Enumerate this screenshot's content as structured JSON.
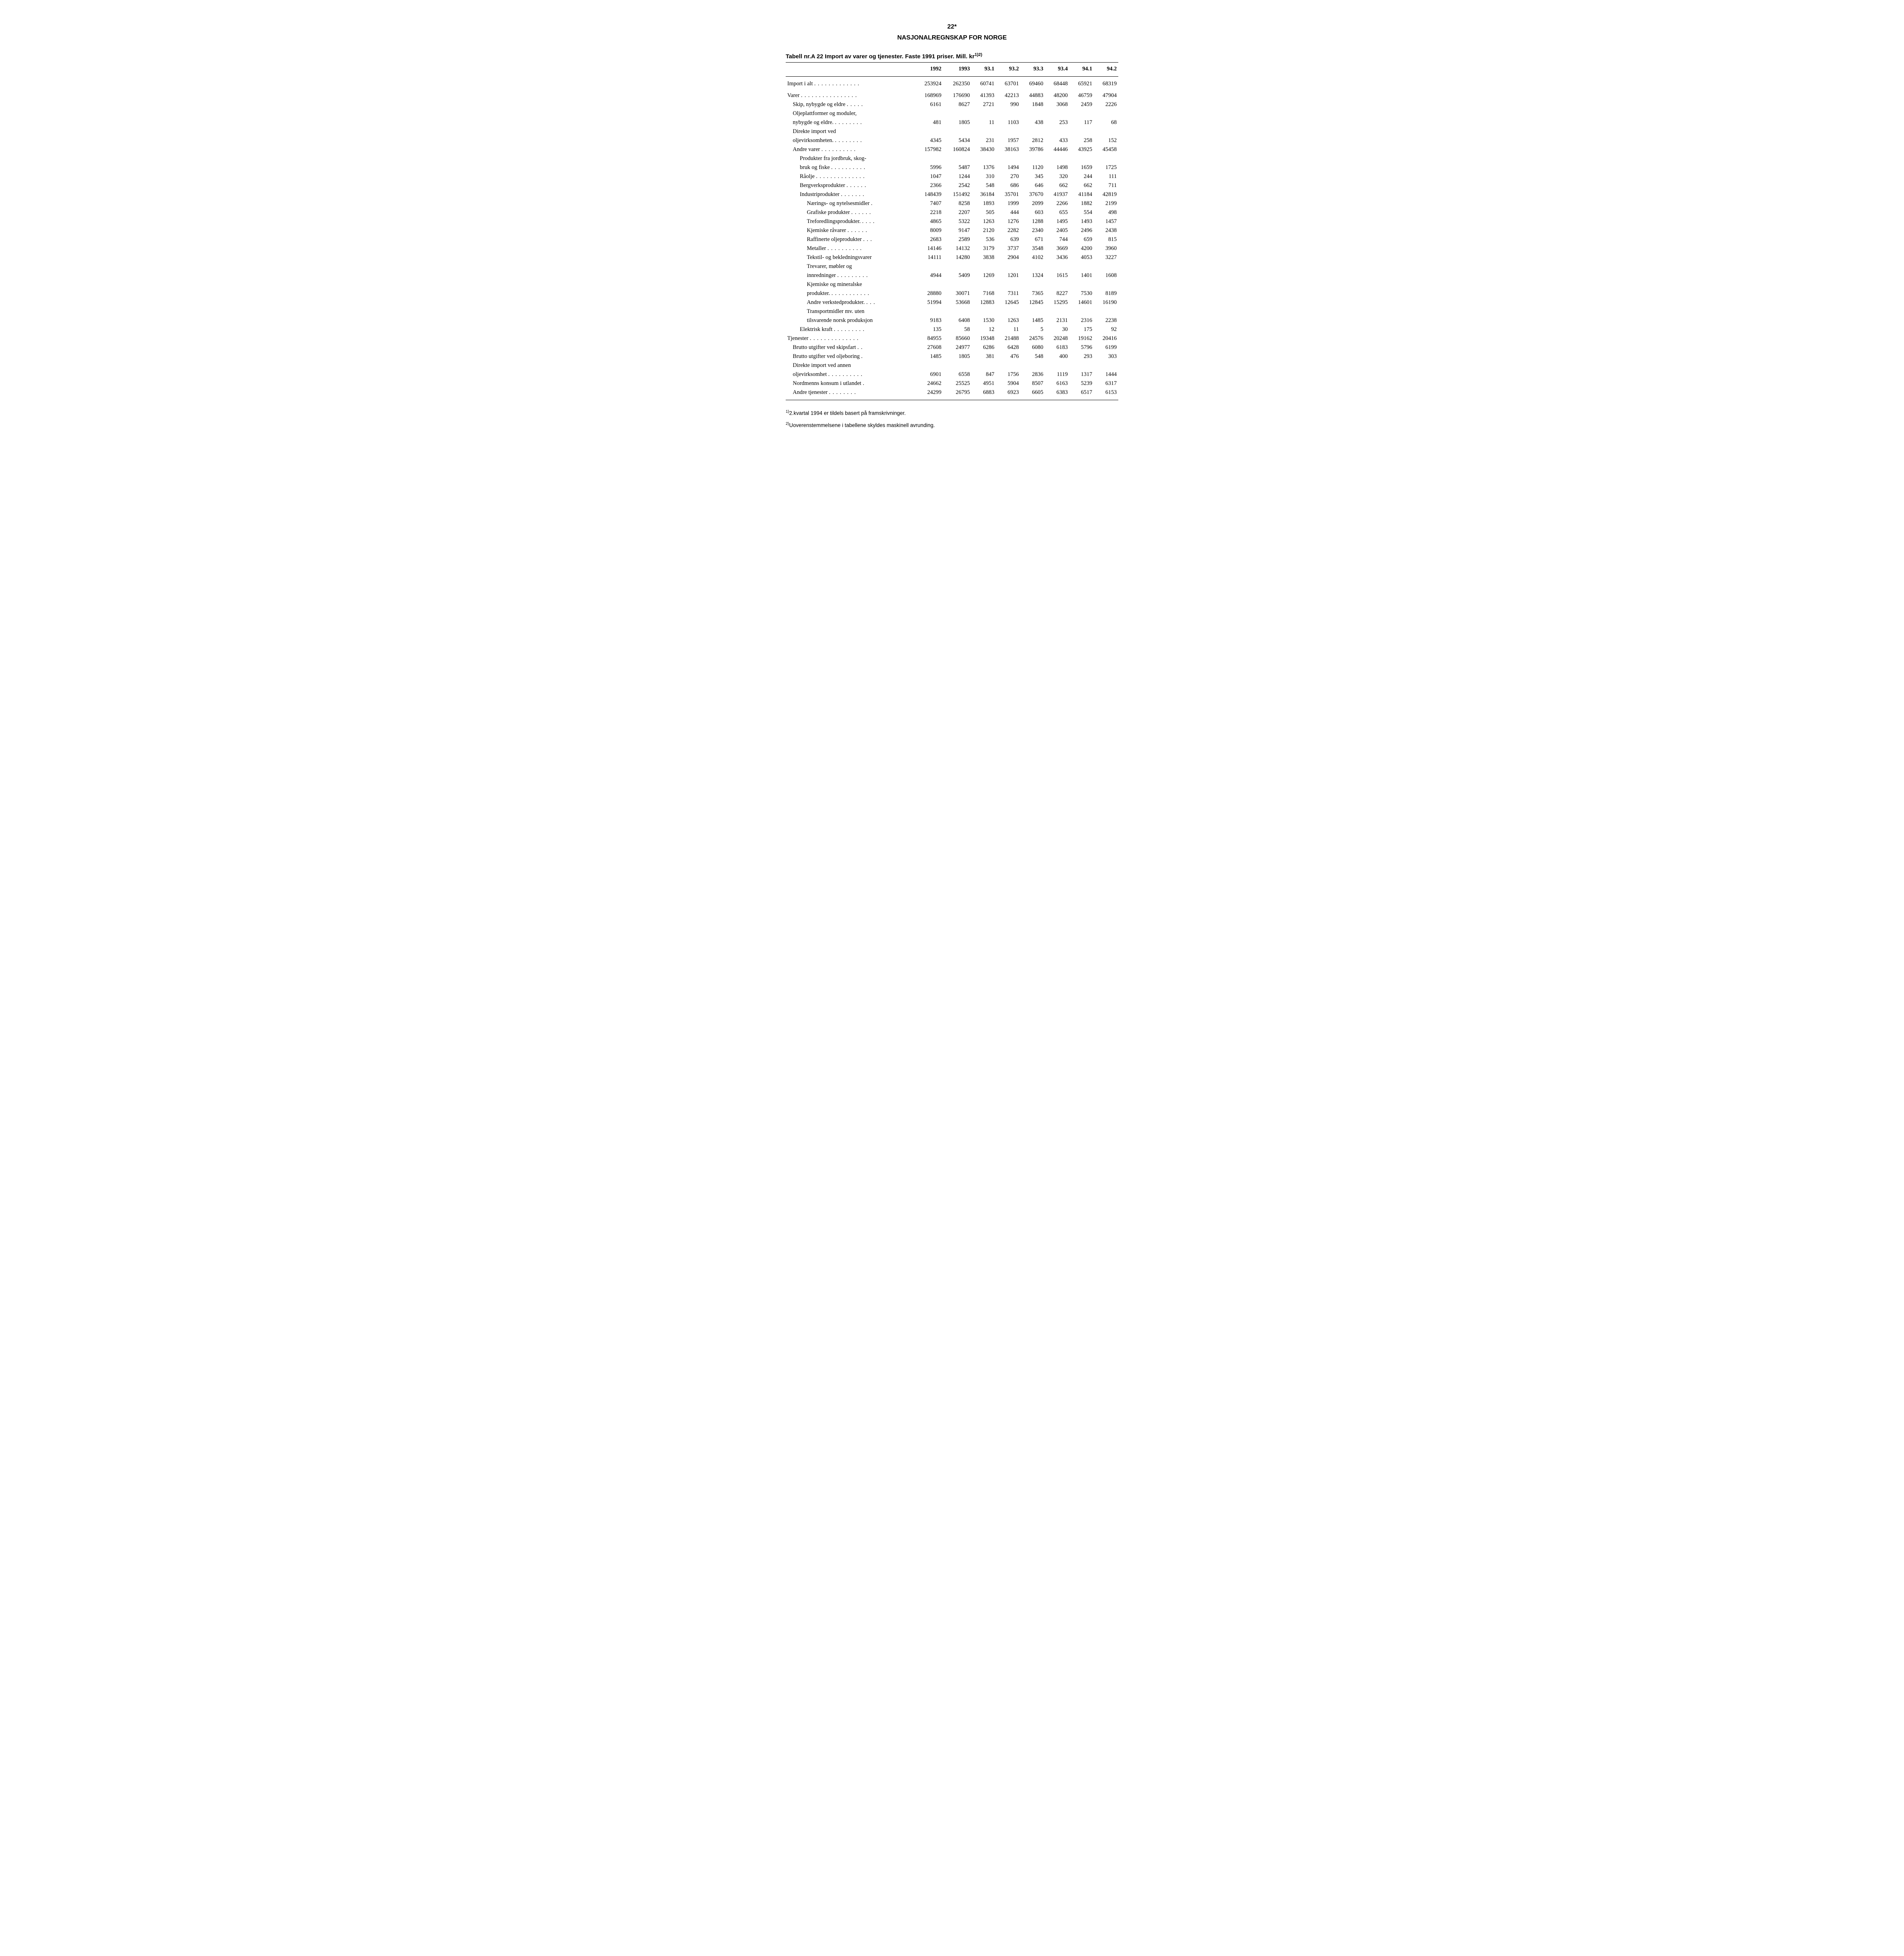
{
  "page_number": "22*",
  "doc_title": "NASJONALREGNSKAP FOR NORGE",
  "table_title_prefix": "Tabell nr.A 22 Import av varer og tjenester. Faste 1991 priser. Mill. kr",
  "table_title_sup": "1)2)",
  "columns": [
    "",
    "1992",
    "1993",
    "93.1",
    "93.2",
    "93.3",
    "93.4",
    "94.1",
    "94.2"
  ],
  "rows": [
    {
      "label": "Import i alt",
      "dots": 13,
      "indent": 0,
      "values": [
        "253924",
        "262350",
        "60741",
        "63701",
        "69460",
        "68448",
        "65921",
        "68319"
      ],
      "spacer": true
    },
    {
      "label": "Varer",
      "dots": 16,
      "indent": 0,
      "values": [
        "168969",
        "176690",
        "41393",
        "42213",
        "44883",
        "48200",
        "46759",
        "47904"
      ],
      "spacer": true
    },
    {
      "label": "Skip, nybygde og eldre",
      "dots": 5,
      "indent": 1,
      "values": [
        "6161",
        "8627",
        "2721",
        "990",
        "1848",
        "3068",
        "2459",
        "2226"
      ]
    },
    {
      "label": "Oljeplattformer og moduler,",
      "dots": 0,
      "indent": 1,
      "values": [
        "",
        "",
        "",
        "",
        "",
        "",
        "",
        ""
      ]
    },
    {
      "label": "nybygde og eldre.",
      "dots": 8,
      "indent": 1,
      "values": [
        "481",
        "1805",
        "11",
        "1103",
        "438",
        "253",
        "117",
        "68"
      ]
    },
    {
      "label": "Direkte import ved",
      "dots": 0,
      "indent": 1,
      "values": [
        "",
        "",
        "",
        "",
        "",
        "",
        "",
        ""
      ]
    },
    {
      "label": "oljevirksomheten.",
      "dots": 8,
      "indent": 1,
      "values": [
        "4345",
        "5434",
        "231",
        "1957",
        "2812",
        "433",
        "258",
        "152"
      ]
    },
    {
      "label": "Andre varer",
      "dots": 10,
      "indent": 1,
      "values": [
        "157982",
        "160824",
        "38430",
        "38163",
        "39786",
        "44446",
        "43925",
        "45458"
      ]
    },
    {
      "label": "Produkter fra jordbruk, skog-",
      "dots": 0,
      "indent": 2,
      "values": [
        "",
        "",
        "",
        "",
        "",
        "",
        "",
        ""
      ]
    },
    {
      "label": "bruk og fiske",
      "dots": 10,
      "indent": 2,
      "values": [
        "5996",
        "5487",
        "1376",
        "1494",
        "1120",
        "1498",
        "1659",
        "1725"
      ]
    },
    {
      "label": "Råolje",
      "dots": 14,
      "indent": 2,
      "values": [
        "1047",
        "1244",
        "310",
        "270",
        "345",
        "320",
        "244",
        "111"
      ]
    },
    {
      "label": "Bergverksprodukter",
      "dots": 6,
      "indent": 2,
      "values": [
        "2366",
        "2542",
        "548",
        "686",
        "646",
        "662",
        "662",
        "711"
      ]
    },
    {
      "label": "Industriprodukter",
      "dots": 7,
      "indent": 2,
      "values": [
        "148439",
        "151492",
        "36184",
        "35701",
        "37670",
        "41937",
        "41184",
        "42819"
      ]
    },
    {
      "label": "Nærings- og nytelsesmidler .",
      "dots": 0,
      "indent": 3,
      "values": [
        "7407",
        "8258",
        "1893",
        "1999",
        "2099",
        "2266",
        "1882",
        "2199"
      ]
    },
    {
      "label": "Grafiske produkter",
      "dots": 6,
      "indent": 3,
      "values": [
        "2218",
        "2207",
        "505",
        "444",
        "603",
        "655",
        "554",
        "498"
      ]
    },
    {
      "label": "Treforedlingsprodukter.",
      "dots": 4,
      "indent": 3,
      "values": [
        "4865",
        "5322",
        "1263",
        "1276",
        "1288",
        "1495",
        "1493",
        "1457"
      ]
    },
    {
      "label": "Kjemiske råvarer",
      "dots": 6,
      "indent": 3,
      "values": [
        "8009",
        "9147",
        "2120",
        "2282",
        "2340",
        "2405",
        "2496",
        "2438"
      ]
    },
    {
      "label": "Raffinerte oljeprodukter",
      "dots": 3,
      "indent": 3,
      "values": [
        "2683",
        "2589",
        "536",
        "639",
        "671",
        "744",
        "659",
        "815"
      ]
    },
    {
      "label": "Metaller",
      "dots": 10,
      "indent": 3,
      "values": [
        "14146",
        "14132",
        "3179",
        "3737",
        "3548",
        "3669",
        "4200",
        "3960"
      ]
    },
    {
      "label": "Tekstil- og bekledningsvarer",
      "dots": 0,
      "indent": 3,
      "values": [
        "14111",
        "14280",
        "3838",
        "2904",
        "4102",
        "3436",
        "4053",
        "3227"
      ]
    },
    {
      "label": "Trevarer, møbler og",
      "dots": 0,
      "indent": 3,
      "values": [
        "",
        "",
        "",
        "",
        "",
        "",
        "",
        ""
      ]
    },
    {
      "label": "innredninger",
      "dots": 9,
      "indent": 3,
      "values": [
        "4944",
        "5409",
        "1269",
        "1201",
        "1324",
        "1615",
        "1401",
        "1608"
      ]
    },
    {
      "label": "Kjemiske og mineralske",
      "dots": 0,
      "indent": 3,
      "values": [
        "",
        "",
        "",
        "",
        "",
        "",
        "",
        ""
      ]
    },
    {
      "label": "produkter.",
      "dots": 11,
      "indent": 3,
      "values": [
        "28880",
        "30071",
        "7168",
        "7311",
        "7365",
        "8227",
        "7530",
        "8189"
      ]
    },
    {
      "label": "Andre verkstedprodukter.",
      "dots": 3,
      "indent": 3,
      "values": [
        "51994",
        "53668",
        "12883",
        "12645",
        "12845",
        "15295",
        "14601",
        "16190"
      ]
    },
    {
      "label": "Transportmidler mv. uten",
      "dots": 0,
      "indent": 3,
      "values": [
        "",
        "",
        "",
        "",
        "",
        "",
        "",
        ""
      ]
    },
    {
      "label": "tilsvarende norsk produksjon",
      "dots": 0,
      "indent": 3,
      "values": [
        "9183",
        "6408",
        "1530",
        "1263",
        "1485",
        "2131",
        "2316",
        "2238"
      ]
    },
    {
      "label": "Elektrisk kraft",
      "dots": 9,
      "indent": 2,
      "values": [
        "135",
        "58",
        "12",
        "11",
        "5",
        "30",
        "175",
        "92"
      ]
    },
    {
      "label": "Tjenester",
      "dots": 14,
      "indent": 0,
      "values": [
        "84955",
        "85660",
        "19348",
        "21488",
        "24576",
        "20248",
        "19162",
        "20416"
      ]
    },
    {
      "label": "Brutto utgifter ved skipsfart",
      "dots": 2,
      "indent": 1,
      "values": [
        "27608",
        "24977",
        "6286",
        "6428",
        "6080",
        "6183",
        "5796",
        "6199"
      ]
    },
    {
      "label": "Brutto utgifter ved oljeboring  .",
      "dots": 0,
      "indent": 1,
      "values": [
        "1485",
        "1805",
        "381",
        "476",
        "548",
        "400",
        "293",
        "303"
      ]
    },
    {
      "label": "Direkte import ved annen",
      "dots": 0,
      "indent": 1,
      "values": [
        "",
        "",
        "",
        "",
        "",
        "",
        "",
        ""
      ]
    },
    {
      "label": "oljevirksomhet",
      "dots": 10,
      "indent": 1,
      "values": [
        "6901",
        "6558",
        "847",
        "1756",
        "2836",
        "1119",
        "1317",
        "1444"
      ]
    },
    {
      "label": "Nordmenns konsum i utlandet .",
      "dots": 0,
      "indent": 1,
      "values": [
        "24662",
        "25525",
        "4951",
        "5904",
        "8507",
        "6163",
        "5239",
        "6317"
      ]
    },
    {
      "label": "Andre tjenester",
      "dots": 8,
      "indent": 1,
      "values": [
        "24299",
        "26795",
        "6883",
        "6923",
        "6605",
        "6383",
        "6517",
        "6153"
      ],
      "bottom_rule": true
    }
  ],
  "footnotes": [
    {
      "sup": "1)",
      "text": "2.kvartal 1994 er tildels basert på framskrivninger."
    },
    {
      "sup": "2)",
      "text": "Uoverenstemmelsene i tabellene skyldes maskinell avrunding."
    }
  ]
}
